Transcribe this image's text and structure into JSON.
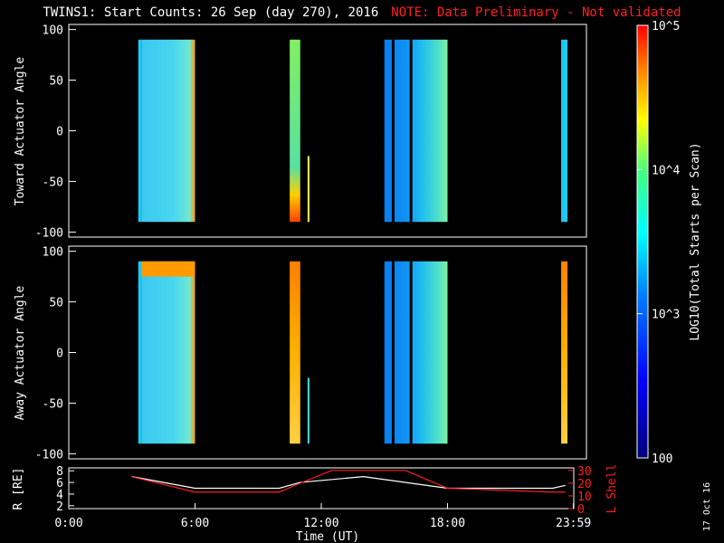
{
  "header": {
    "title": "TWINS1: Start Counts: 26 Sep (day 270), 2016",
    "note": "NOTE: Data Preliminary - Not validated"
  },
  "panels": {
    "top_ylabel": "Toward Actuator Angle",
    "bottom_ylabel": "Away Actuator Angle",
    "ylim": [
      -105,
      105
    ],
    "yticks": [
      "100",
      "50",
      "0",
      "-50",
      "-100"
    ]
  },
  "colorbar": {
    "label": "LOG10(Total Starts per Scan)",
    "ticks": [
      "10^5",
      "10^4",
      "10^3",
      "100"
    ],
    "range": [
      100,
      100000
    ],
    "scale": "log"
  },
  "lower": {
    "left_label": "R [RE]",
    "left_ticks": [
      "8",
      "6",
      "4",
      "2"
    ],
    "right_label": "L Shell",
    "right_ticks": [
      "30",
      "20",
      "10",
      "0"
    ]
  },
  "xaxis": {
    "label": "Time (UT)",
    "ticks": [
      "0:00",
      "6:00",
      "12:00",
      "18:00",
      "23:59"
    ]
  },
  "date_stamp": "17 Oct 16",
  "colors": {
    "background": "#000000",
    "note": "#ff2020",
    "r_line": "#ffffff",
    "lshell_line": "#ff2020"
  },
  "chart_data": {
    "type": "heatmap",
    "x_unit": "hours UT",
    "y_unit": "degrees",
    "data_blocks": [
      {
        "panel": "toward",
        "t_start": 3.3,
        "t_end": 3.45,
        "level": "cyan"
      },
      {
        "panel": "toward",
        "t_start": 3.45,
        "t_end": 6.0,
        "level": "light-cyan"
      },
      {
        "panel": "toward",
        "t_start": 10.5,
        "t_end": 11.0,
        "level": "green"
      },
      {
        "panel": "toward",
        "t_start": 15.0,
        "t_end": 18.0,
        "level": "blue-cyan"
      },
      {
        "panel": "toward",
        "t_start": 23.4,
        "t_end": 23.7,
        "level": "cyan"
      },
      {
        "panel": "away",
        "t_start": 3.3,
        "t_end": 3.45,
        "level": "cyan"
      },
      {
        "panel": "away",
        "t_start": 3.45,
        "t_end": 6.0,
        "level": "light-cyan"
      },
      {
        "panel": "away",
        "t_start": 10.5,
        "t_end": 11.0,
        "level": "orange"
      },
      {
        "panel": "away",
        "t_start": 15.0,
        "t_end": 18.0,
        "level": "blue-cyan"
      },
      {
        "panel": "away",
        "t_start": 23.4,
        "t_end": 23.7,
        "level": "orange"
      }
    ],
    "r_series": {
      "name": "R",
      "t": [
        3.0,
        6.0,
        10.0,
        11.0,
        14.0,
        18.0,
        23.0,
        23.6
      ],
      "values": [
        7.0,
        5.0,
        5.0,
        6.0,
        7.0,
        5.0,
        5.0,
        5.5
      ]
    },
    "lshell_series": {
      "name": "L Shell",
      "t": [
        3.0,
        6.0,
        10.0,
        11.0,
        12.5,
        16.0,
        18.0,
        23.0,
        23.6
      ],
      "values": [
        25,
        13,
        13,
        20,
        30,
        30,
        16,
        13,
        13
      ]
    }
  }
}
